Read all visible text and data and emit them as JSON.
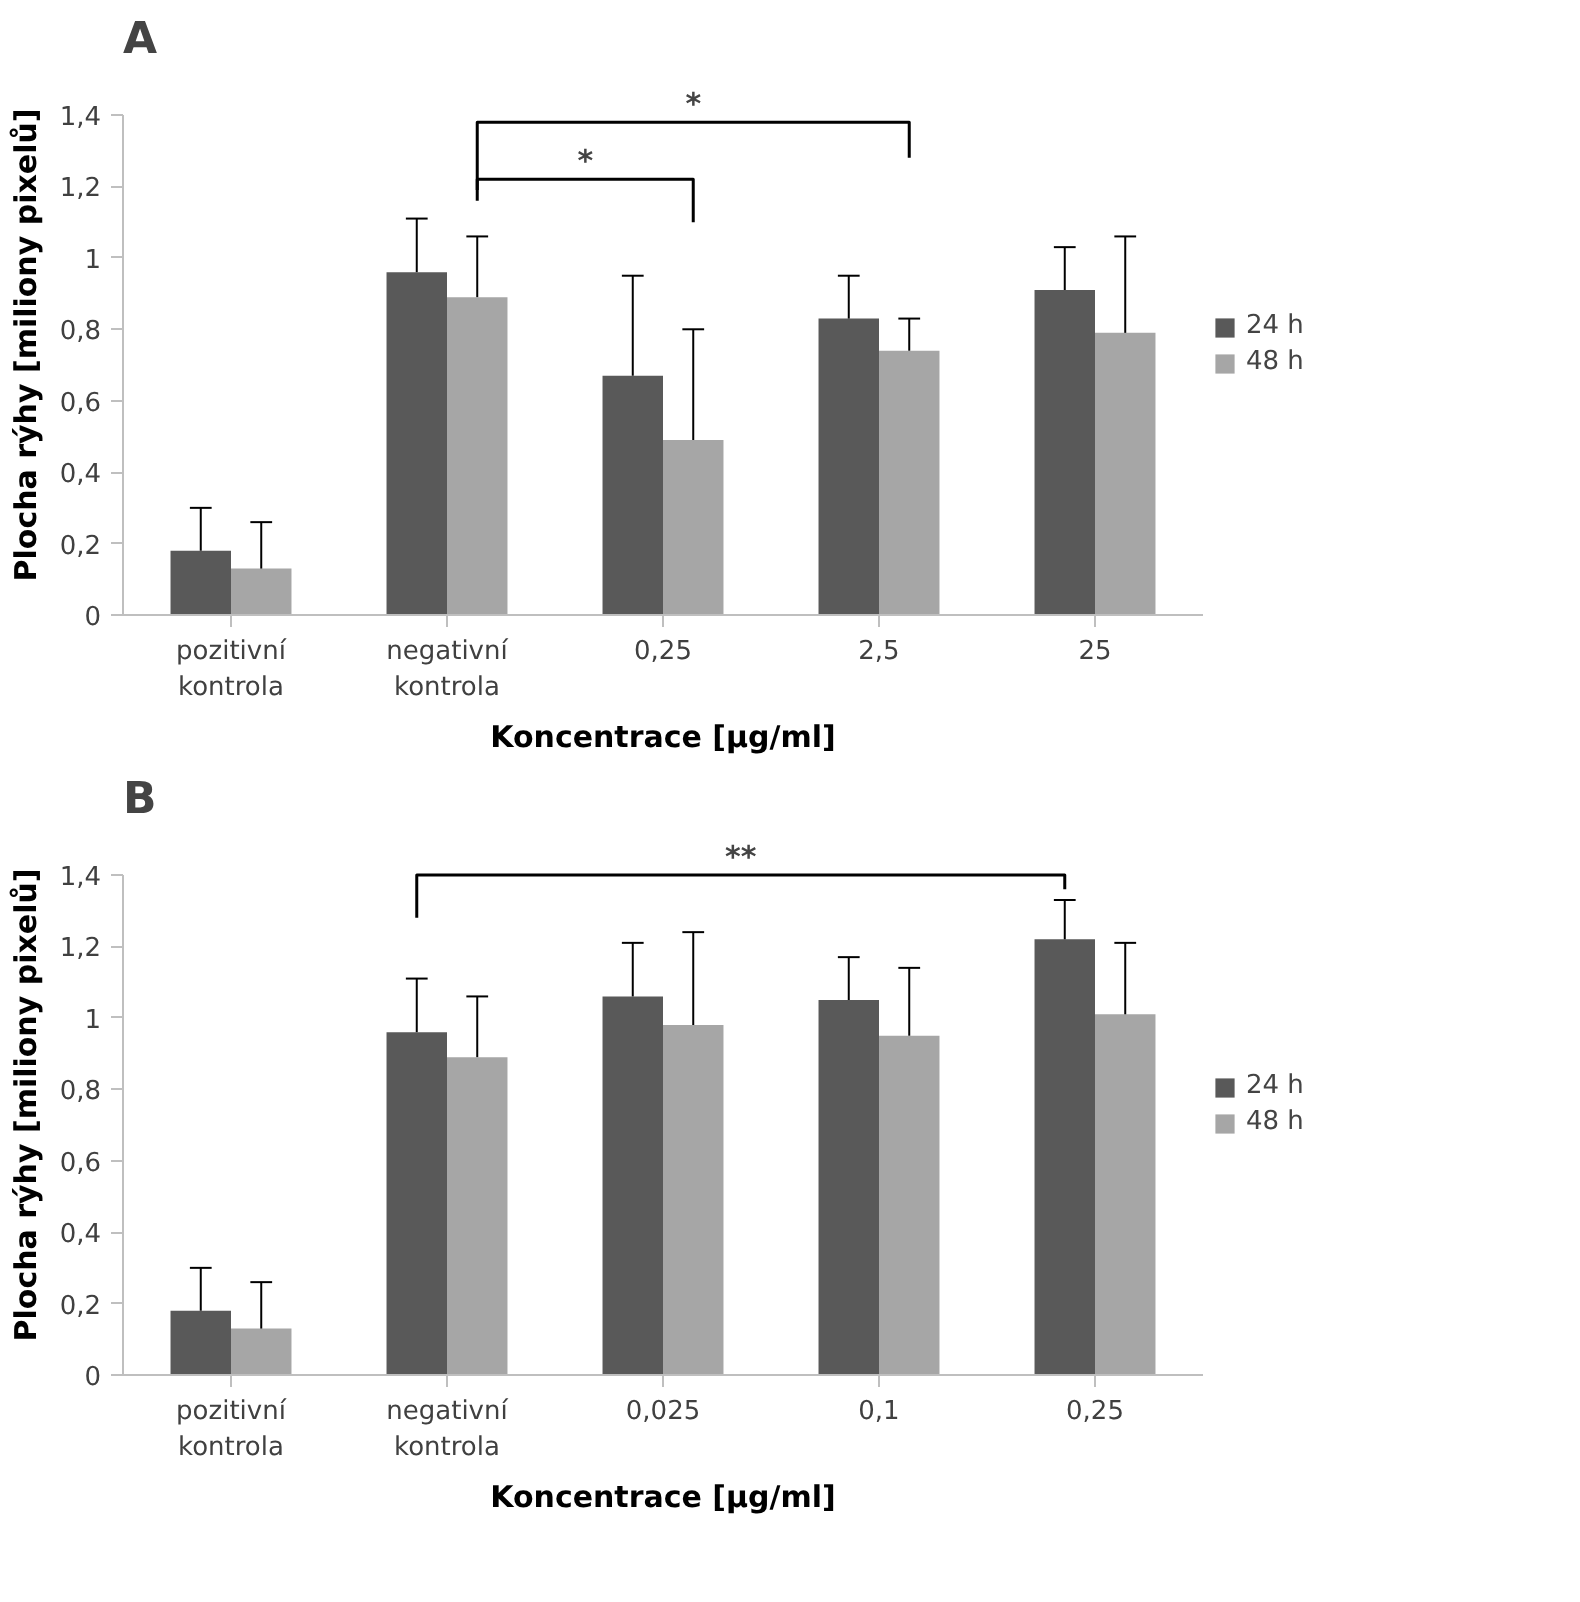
{
  "chart_data": [
    {
      "type": "bar",
      "title": "A",
      "xlabel": "Koncentrace [µg/ml]",
      "ylabel": "Plocha rýhy [miliony pixelů]",
      "categories": [
        "pozitivní kontrola",
        "negativní kontrola",
        "0,25",
        "2,5",
        "25"
      ],
      "series": [
        {
          "name": "24 h",
          "color": "#595959",
          "values": [
            0.18,
            0.96,
            0.67,
            0.83,
            0.91
          ],
          "errors": [
            [
              0.18,
              0.3
            ],
            [
              0.96,
              1.11
            ],
            [
              0.67,
              0.95
            ],
            [
              0.83,
              0.95
            ],
            [
              0.91,
              1.03
            ]
          ]
        },
        {
          "name": "48 h",
          "color": "#a6a6a6",
          "values": [
            0.13,
            0.89,
            0.49,
            0.74,
            0.79
          ],
          "errors": [
            [
              0.13,
              0.26
            ],
            [
              0.89,
              1.06
            ],
            [
              0.49,
              0.8
            ],
            [
              0.74,
              0.83
            ],
            [
              0.79,
              1.06
            ]
          ]
        }
      ],
      "ylim": [
        0,
        1.4
      ],
      "yticks": [
        0,
        {
          "value": 0.2,
          "label": "0,2"
        },
        {
          "value": 0.4,
          "label": "0,4"
        },
        {
          "value": 0.6,
          "label": "0,6"
        },
        {
          "value": 0.8,
          "label": "0,8"
        },
        1,
        {
          "value": 1.2,
          "label": "1,2"
        },
        {
          "value": 1.4,
          "label": "1,4"
        }
      ],
      "annotations": [
        "*",
        "*"
      ],
      "legend": "right",
      "grid": false
    },
    {
      "type": "bar",
      "title": "B",
      "xlabel": "Koncentrace [µg/ml]",
      "ylabel": "Plocha rýhy [miliony pixelů]",
      "categories": [
        "pozitivní kontrola",
        "negativní kontrola",
        "0,025",
        "0,1",
        "0,25"
      ],
      "series": [
        {
          "name": "24 h",
          "color": "#595959",
          "values": [
            0.18,
            0.96,
            1.06,
            1.05,
            1.22
          ],
          "errors": [
            [
              0.18,
              0.3
            ],
            [
              0.96,
              1.11
            ],
            [
              1.06,
              1.21
            ],
            [
              1.05,
              1.17
            ],
            [
              1.22,
              1.33
            ]
          ]
        },
        {
          "name": "48 h",
          "color": "#a6a6a6",
          "values": [
            0.13,
            0.89,
            0.98,
            0.95,
            1.01
          ],
          "errors": [
            [
              0.13,
              0.26
            ],
            [
              0.89,
              1.06
            ],
            [
              0.98,
              1.24
            ],
            [
              0.95,
              1.14
            ],
            [
              1.01,
              1.21
            ]
          ]
        }
      ],
      "ylim": [
        0,
        1.4
      ],
      "yticks": [
        0,
        {
          "value": 0.2,
          "label": "0,2"
        },
        {
          "value": 0.4,
          "label": "0,4"
        },
        {
          "value": 0.6,
          "label": "0,6"
        },
        {
          "value": 0.8,
          "label": "0,8"
        },
        1,
        {
          "value": 1.2,
          "label": "1,2"
        },
        {
          "value": 1.4,
          "label": "1,4"
        }
      ],
      "annotations": [
        "**"
      ],
      "legend": "right",
      "grid": false
    }
  ]
}
